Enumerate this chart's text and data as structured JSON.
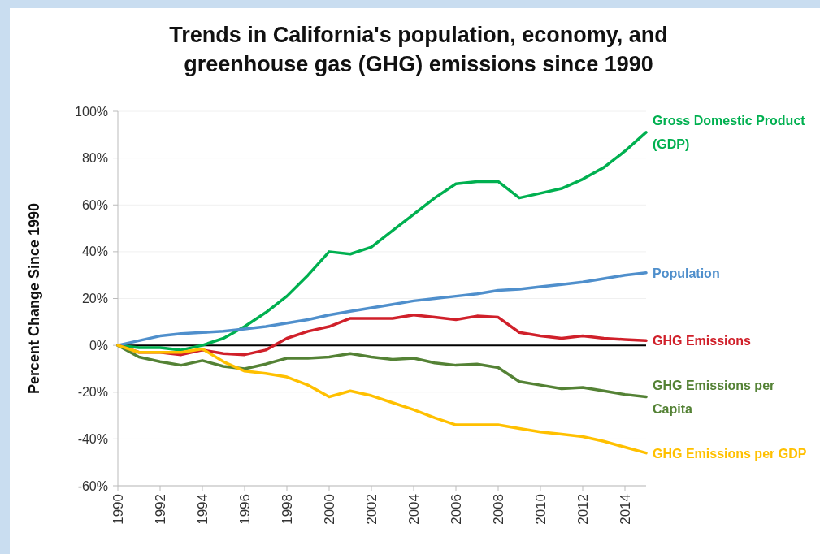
{
  "chart_data": {
    "type": "line",
    "title": "Trends in California's population, economy, and greenhouse gas (GHG) emissions since 1990",
    "ylabel": "Percent Change Since 1990",
    "x": [
      1990,
      1991,
      1992,
      1993,
      1994,
      1995,
      1996,
      1997,
      1998,
      1999,
      2000,
      2001,
      2002,
      2003,
      2004,
      2005,
      2006,
      2007,
      2008,
      2009,
      2010,
      2011,
      2012,
      2013,
      2014,
      2015
    ],
    "series": [
      {
        "name": "Gross Domestic Product (GDP)",
        "color": "#00b050",
        "values": [
          0,
          -1,
          -1,
          -2,
          0,
          3,
          8,
          14,
          21,
          30,
          40,
          39,
          42,
          49,
          56,
          63,
          69,
          70,
          70,
          63,
          65,
          67,
          71,
          76,
          83,
          91
        ]
      },
      {
        "name": "Population",
        "color": "#4f8fcc",
        "values": [
          0,
          2,
          4,
          5,
          5.5,
          6,
          7,
          8,
          9.5,
          11,
          13,
          14.5,
          16,
          17.5,
          19,
          20,
          21,
          22,
          23.5,
          24,
          25,
          26,
          27,
          28.5,
          30,
          31
        ]
      },
      {
        "name": "GHG Emissions",
        "color": "#d0202a",
        "values": [
          0,
          -3,
          -3,
          -4,
          -2,
          -3.5,
          -4,
          -2,
          3,
          6,
          8,
          11.5,
          11.5,
          11.5,
          13,
          12,
          11,
          12.5,
          12,
          5.5,
          4,
          3,
          4,
          3,
          2.5,
          2
        ]
      },
      {
        "name": "GHG Emissions per Capita",
        "color": "#548235",
        "values": [
          0,
          -5,
          -7,
          -8.5,
          -6.5,
          -9,
          -10,
          -8,
          -5.5,
          -5.5,
          -5,
          -3.5,
          -5,
          -6,
          -5.5,
          -7.5,
          -8.5,
          -8,
          -9.5,
          -15.5,
          -17,
          -18.5,
          -18,
          -19.5,
          -21,
          -22
        ]
      },
      {
        "name": "GHG Emissions per GDP",
        "color": "#ffc000",
        "values": [
          0,
          -3,
          -3,
          -3,
          -1.5,
          -7,
          -11,
          -12,
          -13.5,
          -17,
          -22,
          -19.5,
          -21.5,
          -24.5,
          -27.5,
          -31,
          -34,
          -34,
          -34,
          -35.5,
          -37,
          -38,
          -39,
          -41,
          -43.5,
          -46
        ]
      }
    ],
    "xlim": [
      1990,
      2015
    ],
    "xticks": [
      1990,
      1992,
      1994,
      1996,
      1998,
      2000,
      2002,
      2004,
      2006,
      2008,
      2010,
      2012,
      2014
    ],
    "ylim": [
      -60,
      100
    ],
    "yticks": [
      {
        "value": -60,
        "label": "-60%"
      },
      {
        "value": -40,
        "label": "-40%"
      },
      {
        "value": -20,
        "label": "-20%"
      },
      {
        "value": 0,
        "label": "0%"
      },
      {
        "value": 20,
        "label": "20%"
      },
      {
        "value": 40,
        "label": "40%"
      },
      {
        "value": 60,
        "label": "60%"
      },
      {
        "value": 80,
        "label": "80%"
      },
      {
        "value": 100,
        "label": "100%"
      }
    ],
    "ref_lines": [
      {
        "axis": "y",
        "value": 0,
        "color": "#000000"
      }
    ],
    "grid": "y",
    "marker": "none",
    "line_style": "solid"
  }
}
